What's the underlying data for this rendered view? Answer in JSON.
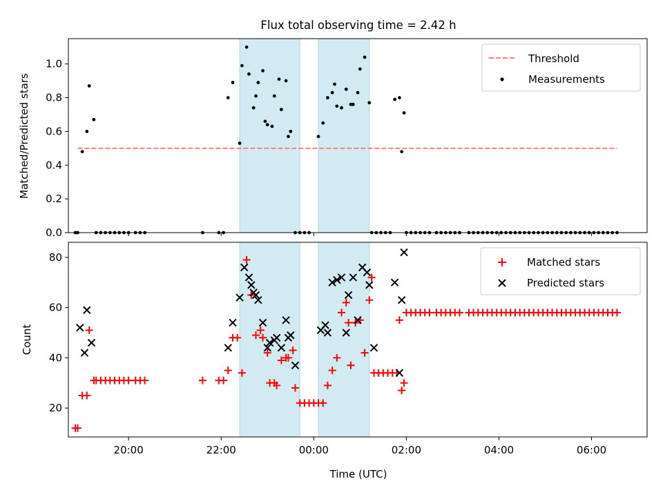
{
  "title": "Flux total observing time = 2.42 h",
  "colors": {
    "threshold": "#ff7f7f",
    "measurement": "#000000",
    "matched": "#ff0000",
    "predicted": "#000000",
    "span": "#add8e6"
  },
  "chart_data": [
    {
      "type": "scatter",
      "ylabel": "Matched/Predicted stars",
      "xlim": [
        -5.3,
        7.2
      ],
      "ylim": [
        0,
        1.15
      ],
      "yticks": [
        0.0,
        0.2,
        0.4,
        0.6,
        0.8,
        1.0
      ],
      "ytick_labels": [
        "0.0",
        "0.2",
        "0.4",
        "0.6",
        "0.8",
        "1.0"
      ],
      "spans": [
        [
          -1.6,
          -0.3
        ],
        [
          0.1,
          1.2
        ]
      ],
      "threshold": {
        "name": "Threshold",
        "y": 0.5,
        "x": [
          -5.1,
          6.55
        ]
      },
      "legend": {
        "position": "top-right",
        "entries": [
          "Threshold",
          "Measurements"
        ]
      },
      "series": [
        {
          "name": "Measurements",
          "points": [
            [
              -5.15,
              0
            ],
            [
              -5.1,
              0
            ],
            [
              -5.0,
              0.48
            ],
            [
              -4.9,
              0.6
            ],
            [
              -4.85,
              0.87
            ],
            [
              -4.75,
              0.67
            ],
            [
              -4.7,
              0
            ],
            [
              -4.6,
              0
            ],
            [
              -4.5,
              0
            ],
            [
              -4.4,
              0
            ],
            [
              -4.3,
              0
            ],
            [
              -4.2,
              0
            ],
            [
              -4.1,
              0
            ],
            [
              -4.0,
              0
            ],
            [
              -3.85,
              0
            ],
            [
              -3.75,
              0
            ],
            [
              -3.65,
              0
            ],
            [
              -2.4,
              0
            ],
            [
              -2.05,
              0
            ],
            [
              -1.95,
              0
            ],
            [
              -1.85,
              0.8
            ],
            [
              -1.75,
              0.89
            ],
            [
              -1.6,
              0.53
            ],
            [
              -1.55,
              0.99
            ],
            [
              -1.45,
              1.1
            ],
            [
              -1.4,
              0.94
            ],
            [
              -1.3,
              0.74
            ],
            [
              -1.25,
              0.81
            ],
            [
              -1.2,
              0.89
            ],
            [
              -1.1,
              0.96
            ],
            [
              -1.05,
              0.66
            ],
            [
              -1.0,
              0.64
            ],
            [
              -0.9,
              0.63
            ],
            [
              -0.85,
              0.81
            ],
            [
              -0.75,
              0.91
            ],
            [
              -0.7,
              0.73
            ],
            [
              -0.6,
              0.9
            ],
            [
              -0.55,
              0.57
            ],
            [
              -0.5,
              0.6
            ],
            [
              -0.4,
              0
            ],
            [
              -0.3,
              0
            ],
            [
              -0.2,
              0
            ],
            [
              -0.1,
              0
            ],
            [
              0.1,
              0.57
            ],
            [
              0.2,
              0.65
            ],
            [
              0.3,
              0.8
            ],
            [
              0.4,
              0.83
            ],
            [
              0.45,
              0.88
            ],
            [
              0.5,
              0.75
            ],
            [
              0.6,
              0.74
            ],
            [
              0.7,
              0.85
            ],
            [
              0.8,
              0.76
            ],
            [
              0.85,
              0.76
            ],
            [
              0.95,
              0.83
            ],
            [
              1.0,
              0.97
            ],
            [
              1.1,
              1.04
            ],
            [
              1.2,
              0.77
            ],
            [
              1.25,
              0
            ],
            [
              1.35,
              0
            ],
            [
              1.45,
              0
            ],
            [
              1.55,
              0
            ],
            [
              1.65,
              0
            ],
            [
              1.75,
              0.79
            ],
            [
              1.85,
              0.8
            ],
            [
              1.9,
              0.48
            ],
            [
              1.95,
              0.71
            ],
            [
              2.0,
              0
            ],
            [
              2.1,
              0
            ],
            [
              2.2,
              0
            ],
            [
              2.3,
              0
            ],
            [
              2.4,
              0
            ],
            [
              2.5,
              0
            ],
            [
              2.65,
              0
            ],
            [
              2.75,
              0
            ],
            [
              2.85,
              0
            ],
            [
              2.95,
              0
            ],
            [
              3.05,
              0
            ],
            [
              3.15,
              0
            ],
            [
              3.35,
              0
            ],
            [
              3.45,
              0
            ],
            [
              3.55,
              0
            ],
            [
              3.65,
              0
            ],
            [
              3.75,
              0
            ],
            [
              3.85,
              0
            ],
            [
              3.95,
              0
            ],
            [
              4.05,
              0
            ],
            [
              4.15,
              0
            ],
            [
              4.25,
              0
            ],
            [
              4.35,
              0
            ],
            [
              4.45,
              0
            ],
            [
              4.55,
              0
            ],
            [
              4.65,
              0
            ],
            [
              4.75,
              0
            ],
            [
              4.85,
              0
            ],
            [
              4.95,
              0
            ],
            [
              5.05,
              0
            ],
            [
              5.15,
              0
            ],
            [
              5.25,
              0
            ],
            [
              5.35,
              0
            ],
            [
              5.45,
              0
            ],
            [
              5.55,
              0
            ],
            [
              5.65,
              0
            ],
            [
              5.75,
              0
            ],
            [
              5.85,
              0
            ],
            [
              5.95,
              0
            ],
            [
              6.05,
              0
            ],
            [
              6.15,
              0
            ],
            [
              6.25,
              0
            ],
            [
              6.35,
              0
            ],
            [
              6.45,
              0
            ],
            [
              6.55,
              0
            ]
          ]
        }
      ]
    },
    {
      "type": "scatter",
      "ylabel": "Count",
      "xlabel": "Time (UTC)",
      "xlim": [
        -5.3,
        7.2
      ],
      "ylim": [
        8.5,
        86
      ],
      "yticks": [
        20,
        40,
        60,
        80
      ],
      "ytick_labels": [
        "20",
        "40",
        "60",
        "80"
      ],
      "xticks": [
        -4,
        -2,
        0,
        2,
        4,
        6
      ],
      "xtick_labels": [
        "20:00",
        "22:00",
        "00:00",
        "02:00",
        "04:00",
        "06:00"
      ],
      "spans": [
        [
          -1.6,
          -0.3
        ],
        [
          0.1,
          1.2
        ]
      ],
      "legend": {
        "position": "top-right",
        "entries": [
          "Matched stars",
          "Predicted stars"
        ]
      },
      "series": [
        {
          "name": "Matched stars",
          "points": [
            [
              -5.15,
              12
            ],
            [
              -5.1,
              12
            ],
            [
              -5.0,
              25
            ],
            [
              -4.9,
              25
            ],
            [
              -4.85,
              51
            ],
            [
              -4.75,
              31
            ],
            [
              -4.7,
              31
            ],
            [
              -4.6,
              31
            ],
            [
              -4.5,
              31
            ],
            [
              -4.4,
              31
            ],
            [
              -4.3,
              31
            ],
            [
              -4.2,
              31
            ],
            [
              -4.1,
              31
            ],
            [
              -4.0,
              31
            ],
            [
              -3.85,
              31
            ],
            [
              -3.75,
              31
            ],
            [
              -3.65,
              31
            ],
            [
              -2.4,
              31
            ],
            [
              -2.05,
              31
            ],
            [
              -1.95,
              31
            ],
            [
              -1.85,
              35
            ],
            [
              -1.75,
              48
            ],
            [
              -1.65,
              48
            ],
            [
              -1.55,
              34
            ],
            [
              -1.45,
              79
            ],
            [
              -1.35,
              65
            ],
            [
              -1.25,
              49
            ],
            [
              -1.15,
              51
            ],
            [
              -1.1,
              48
            ],
            [
              -1.0,
              42
            ],
            [
              -0.95,
              30
            ],
            [
              -0.85,
              30
            ],
            [
              -0.8,
              29
            ],
            [
              -0.7,
              39
            ],
            [
              -0.6,
              40
            ],
            [
              -0.55,
              40
            ],
            [
              -0.45,
              43
            ],
            [
              -0.4,
              28
            ],
            [
              -0.3,
              22
            ],
            [
              -0.2,
              22
            ],
            [
              -0.1,
              22
            ],
            [
              0.0,
              22
            ],
            [
              0.1,
              22
            ],
            [
              0.2,
              22
            ],
            [
              0.3,
              29
            ],
            [
              0.4,
              35
            ],
            [
              0.5,
              40
            ],
            [
              0.6,
              58
            ],
            [
              0.7,
              62
            ],
            [
              0.75,
              54
            ],
            [
              0.8,
              37
            ],
            [
              0.9,
              54
            ],
            [
              1.0,
              55
            ],
            [
              1.1,
              42
            ],
            [
              1.2,
              63
            ],
            [
              1.25,
              72
            ],
            [
              1.3,
              34
            ],
            [
              1.4,
              34
            ],
            [
              1.5,
              34
            ],
            [
              1.6,
              34
            ],
            [
              1.7,
              34
            ],
            [
              1.8,
              34
            ],
            [
              1.85,
              55
            ],
            [
              1.9,
              27
            ],
            [
              1.95,
              30
            ],
            [
              2.0,
              58
            ],
            [
              2.1,
              58
            ],
            [
              2.2,
              58
            ],
            [
              2.3,
              58
            ],
            [
              2.4,
              58
            ],
            [
              2.5,
              58
            ],
            [
              2.65,
              58
            ],
            [
              2.75,
              58
            ],
            [
              2.85,
              58
            ],
            [
              2.95,
              58
            ],
            [
              3.05,
              58
            ],
            [
              3.15,
              58
            ],
            [
              3.35,
              58
            ],
            [
              3.45,
              58
            ],
            [
              3.55,
              58
            ],
            [
              3.65,
              58
            ],
            [
              3.75,
              58
            ],
            [
              3.85,
              58
            ],
            [
              3.95,
              58
            ],
            [
              4.05,
              58
            ],
            [
              4.15,
              58
            ],
            [
              4.25,
              58
            ],
            [
              4.35,
              58
            ],
            [
              4.45,
              58
            ],
            [
              4.55,
              58
            ],
            [
              4.65,
              58
            ],
            [
              4.75,
              58
            ],
            [
              4.85,
              58
            ],
            [
              4.95,
              58
            ],
            [
              5.05,
              58
            ],
            [
              5.15,
              58
            ],
            [
              5.25,
              58
            ],
            [
              5.35,
              58
            ],
            [
              5.45,
              58
            ],
            [
              5.55,
              58
            ],
            [
              5.65,
              58
            ],
            [
              5.75,
              58
            ],
            [
              5.85,
              58
            ],
            [
              5.95,
              58
            ],
            [
              6.05,
              58
            ],
            [
              6.15,
              58
            ],
            [
              6.25,
              58
            ],
            [
              6.35,
              58
            ],
            [
              6.45,
              58
            ],
            [
              6.55,
              58
            ]
          ]
        },
        {
          "name": "Predicted stars",
          "points": [
            [
              -5.05,
              52
            ],
            [
              -4.95,
              42
            ],
            [
              -4.9,
              59
            ],
            [
              -4.8,
              46
            ],
            [
              -1.85,
              44
            ],
            [
              -1.75,
              54
            ],
            [
              -1.6,
              64
            ],
            [
              -1.5,
              76
            ],
            [
              -1.4,
              72
            ],
            [
              -1.35,
              69
            ],
            [
              -1.3,
              66
            ],
            [
              -1.25,
              65
            ],
            [
              -1.2,
              63
            ],
            [
              -1.1,
              54
            ],
            [
              -1.0,
              44
            ],
            [
              -0.95,
              46
            ],
            [
              -0.85,
              47
            ],
            [
              -0.8,
              48
            ],
            [
              -0.7,
              44
            ],
            [
              -0.6,
              55
            ],
            [
              -0.55,
              48
            ],
            [
              -0.5,
              49
            ],
            [
              -0.4,
              37
            ],
            [
              0.15,
              51
            ],
            [
              0.25,
              53
            ],
            [
              0.3,
              50
            ],
            [
              0.4,
              70
            ],
            [
              0.5,
              71
            ],
            [
              0.6,
              72
            ],
            [
              0.7,
              50
            ],
            [
              0.75,
              65
            ],
            [
              0.85,
              72
            ],
            [
              0.95,
              55
            ],
            [
              1.05,
              76
            ],
            [
              1.15,
              74
            ],
            [
              1.2,
              69
            ],
            [
              1.3,
              44
            ],
            [
              1.75,
              70
            ],
            [
              1.85,
              34
            ],
            [
              1.9,
              63
            ],
            [
              1.95,
              82
            ]
          ]
        }
      ]
    }
  ]
}
